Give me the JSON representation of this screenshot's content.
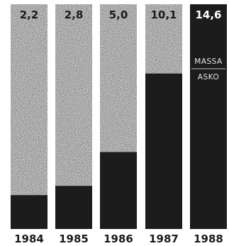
{
  "chart_data": {
    "type": "bar",
    "categories": [
      "1984",
      "1985",
      "1986",
      "1987",
      "1988"
    ],
    "values": [
      2.2,
      2.8,
      5.0,
      10.1,
      14.6
    ],
    "value_labels": [
      "2,2",
      "2,8",
      "5,0",
      "10,1",
      "14,6"
    ],
    "annotations": {
      "upper": "MASSA",
      "lower": "ASKO"
    },
    "ylim": [
      0,
      14.6
    ],
    "colors": {
      "filled": "#1c1c1c",
      "speckle_bg": "#d4d4d4",
      "label_dark": "#1a1a1a",
      "label_light": "#ffffff"
    }
  }
}
